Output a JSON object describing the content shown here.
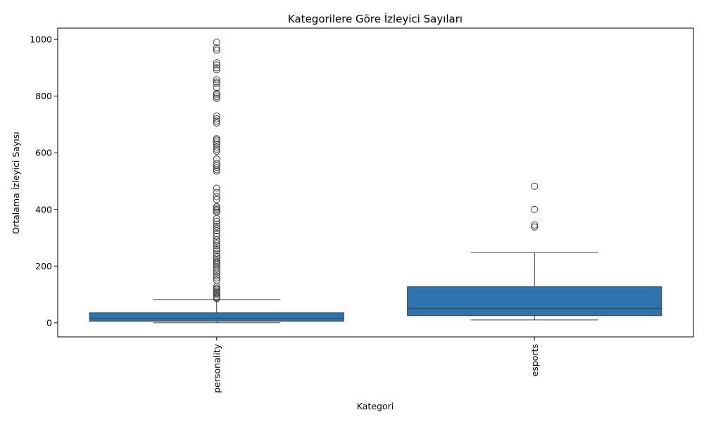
{
  "chart_data": {
    "type": "box",
    "title": "Kategorilere Göre İzleyici Sayıları",
    "xlabel": "Kategori",
    "ylabel": "Ortalama İzleyici Sayısı",
    "ylim": [
      -50,
      1040
    ],
    "yticks": [
      0,
      200,
      400,
      600,
      800,
      1000
    ],
    "grid": false,
    "box_color": "#2e75b0",
    "line_color": "#3f3f3f",
    "categories": [
      "personality",
      "esports"
    ],
    "boxes": [
      {
        "category": "personality",
        "whisker_low": 0,
        "q1": 5,
        "median": 15,
        "q3": 35,
        "whisker_high": 82,
        "outliers": [
          85,
          88,
          92,
          98,
          103,
          108,
          113,
          118,
          122,
          128,
          150,
          158,
          165,
          175,
          183,
          190,
          198,
          205,
          210,
          215,
          220,
          228,
          235,
          245,
          255,
          262,
          272,
          280,
          288,
          293,
          305,
          315,
          325,
          333,
          340,
          348,
          358,
          368,
          390,
          395,
          400,
          405,
          410,
          435,
          445,
          460,
          475,
          535,
          540,
          548,
          555,
          562,
          578,
          605,
          612,
          620,
          630,
          638,
          645,
          650,
          705,
          712,
          720,
          730,
          792,
          798,
          805,
          810,
          830,
          845,
          850,
          858,
          893,
          900,
          910,
          918,
          962,
          970,
          990
        ]
      },
      {
        "category": "esports",
        "whisker_low": 10,
        "q1": 25,
        "median": 50,
        "q3": 127,
        "whisker_high": 248,
        "outliers": [
          338,
          345,
          400,
          482
        ]
      }
    ]
  }
}
